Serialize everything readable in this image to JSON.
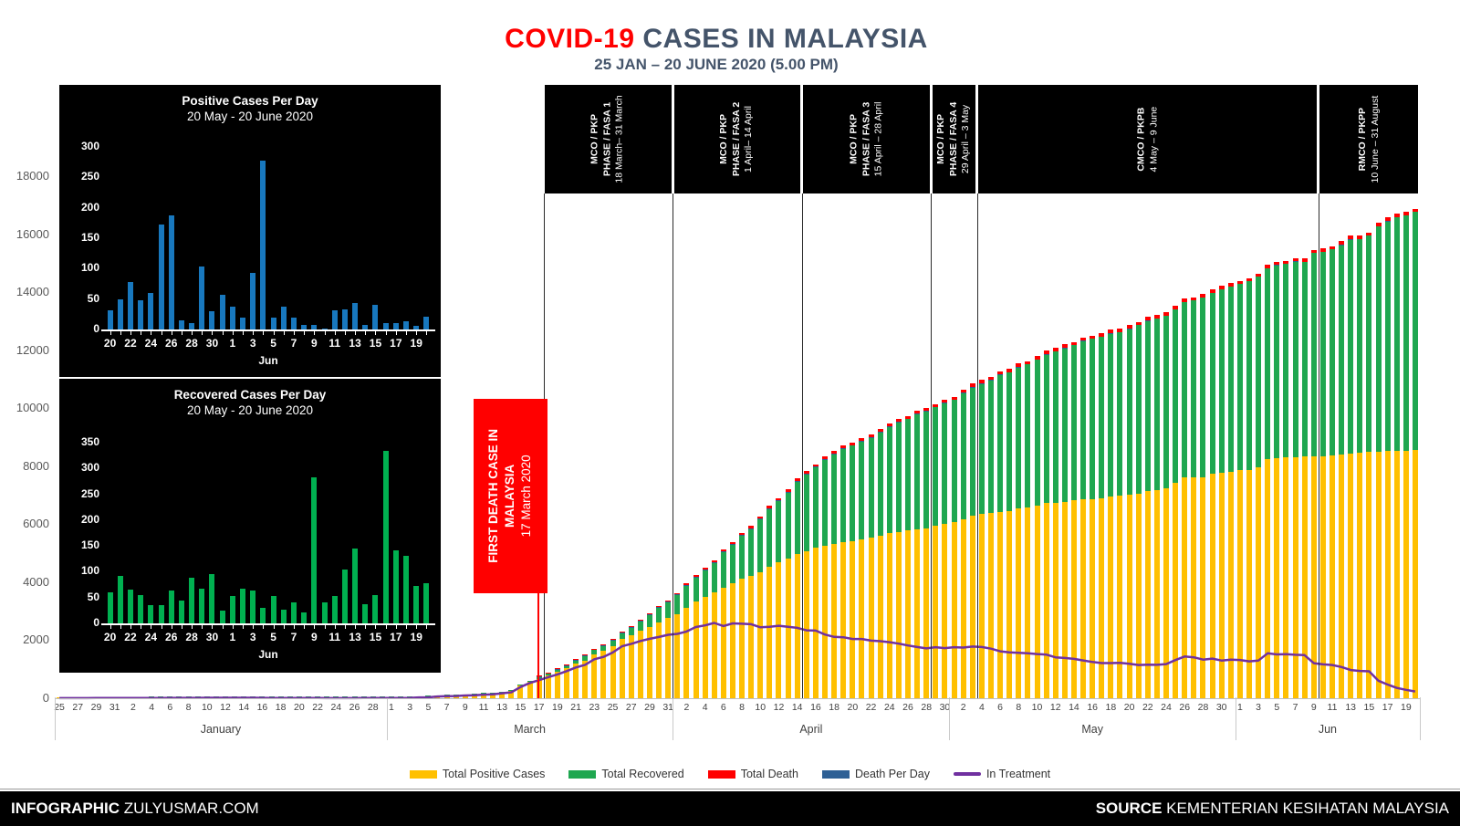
{
  "header": {
    "title_highlight": "COVID-19",
    "title_rest": "CASES IN MALAYSIA",
    "subtitle": "25 JAN – 20 JUNE 2020 (5.00 PM)"
  },
  "annotation_first_death": {
    "line1": "FIRST DEATH CASE IN",
    "line2": "MALAYSIA",
    "date": "17 March 2020"
  },
  "phases": [
    {
      "l1": "MCO / PKP",
      "l2": "PHASE / FASA 1",
      "date": "18 March– 31 March",
      "start_index": 53,
      "end_index": 66
    },
    {
      "l1": "MCO / PKP",
      "l2": "PHASE / FASA 2",
      "date": "1 April– 14 April",
      "start_index": 67,
      "end_index": 80
    },
    {
      "l1": "MCO / PKP",
      "l2": "PHASE / FASA 3",
      "date": "15 April – 28 April",
      "start_index": 81,
      "end_index": 94
    },
    {
      "l1": "MCO / PKP",
      "l2": "PHASE / FASA 4",
      "date": "29 April – 3 May",
      "start_index": 95,
      "end_index": 99
    },
    {
      "l1": "CMCO / PKPB",
      "l2": "",
      "date": "4 May – 9 June",
      "start_index": 100,
      "end_index": 136
    },
    {
      "l1": "RMCO / PKPP",
      "l2": "",
      "date": "10 June – 31 August",
      "start_index": 137,
      "end_index": 147
    }
  ],
  "legend": [
    {
      "label": "Total Positive Cases",
      "color": "#FFC000",
      "shape": "box"
    },
    {
      "label": "Total Recovered",
      "color": "#1FA750",
      "shape": "box"
    },
    {
      "label": "Total Death",
      "color": "#FF0000",
      "shape": "box"
    },
    {
      "label": "Death Per Day",
      "color": "#2E6095",
      "shape": "box"
    },
    {
      "label": "In Treatment",
      "color": "#7030A0",
      "shape": "line"
    }
  ],
  "footer": {
    "left_bold": "INFOGRAPHIC",
    "left_text": "ZULYUSMAR.COM",
    "right_bold": "SOURCE",
    "right_text": "KEMENTERIAN KESIHATAN MALAYSIA"
  },
  "colors": {
    "title_dark": "#44546A",
    "bar_yellow": "#FFC000",
    "bar_green": "#1FA750",
    "bar_red": "#FF0000",
    "bar_blue": "#2E6095",
    "line_purple": "#7030A0",
    "inset_bar_blue": "#1878BE",
    "inset_bar_green": "#00B050"
  },
  "chart_data": [
    {
      "type": "bar",
      "stacked": true,
      "title": "COVID-19 CASES IN MALAYSIA",
      "subtitle": "25 JAN – 20 JUNE 2020 (5.00 PM)",
      "ylim": [
        0,
        18000
      ],
      "yticks": [
        0,
        2000,
        4000,
        6000,
        8000,
        10000,
        12000,
        14000,
        16000,
        18000
      ],
      "x_tick_interval": 2,
      "x_days": [
        25,
        26,
        27,
        28,
        29,
        30,
        31,
        1,
        2,
        3,
        4,
        5,
        6,
        7,
        8,
        9,
        10,
        11,
        12,
        13,
        14,
        15,
        16,
        17,
        18,
        19,
        20,
        21,
        22,
        23,
        24,
        25,
        26,
        27,
        28,
        29,
        1,
        2,
        3,
        4,
        5,
        6,
        7,
        8,
        9,
        10,
        11,
        12,
        13,
        14,
        15,
        16,
        17,
        18,
        19,
        20,
        21,
        22,
        23,
        24,
        25,
        26,
        27,
        28,
        29,
        30,
        31,
        1,
        2,
        3,
        4,
        5,
        6,
        7,
        8,
        9,
        10,
        11,
        12,
        13,
        14,
        15,
        16,
        17,
        18,
        19,
        20,
        21,
        22,
        23,
        24,
        25,
        26,
        27,
        28,
        29,
        30,
        1,
        2,
        3,
        4,
        5,
        6,
        7,
        8,
        9,
        10,
        11,
        12,
        13,
        14,
        15,
        16,
        17,
        18,
        19,
        20,
        21,
        22,
        23,
        24,
        25,
        26,
        27,
        28,
        29,
        30,
        31,
        1,
        2,
        3,
        4,
        5,
        6,
        7,
        8,
        9,
        10,
        11,
        12,
        13,
        14,
        15,
        16,
        17,
        18,
        19,
        20
      ],
      "month_groups": [
        {
          "label": "January",
          "start_index": 0,
          "end_index": 35
        },
        {
          "label": "March",
          "start_index": 36,
          "end_index": 66
        },
        {
          "label": "April",
          "start_index": 67,
          "end_index": 96
        },
        {
          "label": "May",
          "start_index": 97,
          "end_index": 127
        },
        {
          "label": "Jun",
          "start_index": 128,
          "end_index": 147
        }
      ],
      "series": [
        {
          "name": "Total Positive Cases",
          "color": "#FFC000",
          "values": [
            3,
            4,
            4,
            4,
            7,
            8,
            8,
            8,
            8,
            8,
            10,
            12,
            14,
            15,
            16,
            17,
            18,
            18,
            18,
            19,
            19,
            22,
            22,
            22,
            22,
            22,
            22,
            22,
            22,
            22,
            22,
            22,
            22,
            23,
            25,
            25,
            29,
            29,
            36,
            50,
            55,
            83,
            93,
            99,
            117,
            129,
            149,
            158,
            197,
            238,
            428,
            566,
            673,
            790,
            900,
            1030,
            1183,
            1306,
            1518,
            1624,
            1796,
            2031,
            2161,
            2320,
            2470,
            2626,
            2766,
            2908,
            3116,
            3333,
            3483,
            3662,
            3793,
            3963,
            4119,
            4228,
            4346,
            4530,
            4683,
            4817,
            4987,
            5072,
            5182,
            5251,
            5305,
            5389,
            5425,
            5482,
            5532,
            5603,
            5691,
            5742,
            5780,
            5820,
            5851,
            5945,
            6002,
            6071,
            6176,
            6298,
            6353,
            6383,
            6428,
            6467,
            6535,
            6589,
            6656,
            6726,
            6742,
            6779,
            6819,
            6855,
            6872,
            6894,
            6941,
            6978,
            7009,
            7059,
            7137,
            7185,
            7245,
            7417,
            7604,
            7619,
            7629,
            7732,
            7762,
            7819,
            7857,
            7877,
            7970,
            8247,
            8266,
            8303,
            8322,
            8329,
            8336,
            8338,
            8369,
            8402,
            8445,
            8453,
            8494,
            8505,
            8515,
            8529,
            8535,
            8556
          ]
        },
        {
          "name": "Total Recovered",
          "color": "#1FA750",
          "values": [
            0,
            0,
            0,
            0,
            0,
            0,
            0,
            0,
            0,
            0,
            1,
            1,
            1,
            1,
            2,
            3,
            3,
            3,
            3,
            3,
            3,
            7,
            9,
            13,
            13,
            15,
            15,
            15,
            17,
            18,
            18,
            18,
            18,
            18,
            18,
            18,
            18,
            22,
            22,
            22,
            22,
            22,
            23,
            24,
            24,
            26,
            26,
            26,
            26,
            35,
            42,
            42,
            49,
            60,
            75,
            87,
            114,
            139,
            159,
            183,
            199,
            215,
            259,
            320,
            388,
            479,
            537,
            645,
            767,
            827,
            915,
            1005,
            1241,
            1321,
            1487,
            1608,
            1830,
            1995,
            2108,
            2276,
            2478,
            2647,
            2766,
            2967,
            3102,
            3197,
            3295,
            3349,
            3452,
            3542,
            3663,
            3762,
            3862,
            3957,
            4032,
            4087,
            4171,
            4210,
            4326,
            4413,
            4484,
            4567,
            4702,
            4776,
            4864,
            4929,
            5025,
            5113,
            5223,
            5281,
            5351,
            5439,
            5512,
            5571,
            5615,
            5646,
            5706,
            5798,
            5863,
            5918,
            5953,
            5988,
            6051,
            6095,
            6184,
            6251,
            6347,
            6372,
            6425,
            6492,
            6555,
            6585,
            6638,
            6665,
            6706,
            6727,
            7010,
            7051,
            7104,
            7208,
            7353,
            7391,
            7446,
            7780,
            7922,
            8052,
            8124,
            8202
          ]
        },
        {
          "name": "Total Death",
          "color": "#FF0000",
          "values": [
            0,
            0,
            0,
            0,
            0,
            0,
            0,
            0,
            0,
            0,
            0,
            0,
            0,
            0,
            0,
            0,
            0,
            0,
            0,
            0,
            0,
            0,
            0,
            0,
            0,
            0,
            0,
            0,
            0,
            0,
            0,
            0,
            0,
            0,
            0,
            0,
            0,
            0,
            0,
            0,
            0,
            0,
            0,
            0,
            0,
            0,
            0,
            0,
            0,
            0,
            0,
            0,
            2,
            2,
            3,
            8,
            10,
            14,
            14,
            16,
            20,
            24,
            26,
            27,
            34,
            37,
            43,
            45,
            50,
            53,
            57,
            61,
            62,
            63,
            65,
            67,
            70,
            73,
            76,
            77,
            82,
            83,
            84,
            86,
            88,
            89,
            89,
            92,
            93,
            95,
            96,
            98,
            98,
            99,
            100,
            100,
            102,
            102,
            103,
            104,
            105,
            106,
            107,
            107,
            108,
            108,
            108,
            109,
            109,
            111,
            111,
            112,
            112,
            112,
            113,
            113,
            114,
            114,
            115,
            115,
            115,
            115,
            115,
            115,
            115,
            115,
            115,
            115,
            115,
            115,
            115,
            115,
            117,
            117,
            118,
            118,
            118,
            118,
            118,
            119,
            120,
            120,
            120,
            120,
            121,
            121,
            121,
            121
          ]
        },
        {
          "name": "Death Per Day",
          "color": "#2E6095",
          "derived": "daily difference of Total Death"
        },
        {
          "name": "In Treatment",
          "type": "line",
          "color": "#7030A0",
          "derived": "Total Positive Cases - Total Recovered - Total Death"
        }
      ]
    },
    {
      "type": "bar",
      "title": "Positive Cases Per Day",
      "subtitle": "20 May - 20 June 2020",
      "bar_color": "#1878BE",
      "ylim": [
        0,
        300
      ],
      "ytick_step": 50,
      "x_month_label": "Jun",
      "x_days": [
        20,
        21,
        22,
        23,
        24,
        25,
        26,
        27,
        28,
        29,
        30,
        31,
        1,
        2,
        3,
        4,
        5,
        6,
        7,
        8,
        9,
        10,
        11,
        12,
        13,
        14,
        15,
        16,
        17,
        18,
        19,
        20
      ],
      "values": [
        31,
        50,
        78,
        48,
        60,
        172,
        187,
        15,
        10,
        103,
        30,
        57,
        38,
        20,
        93,
        277,
        19,
        37,
        19,
        7,
        7,
        2,
        31,
        33,
        43,
        8,
        41,
        11,
        10,
        14,
        6,
        21
      ]
    },
    {
      "type": "bar",
      "title": "Recovered Cases Per Day",
      "subtitle": "20 May - 20 June 2020",
      "bar_color": "#00B050",
      "ylim": [
        0,
        350
      ],
      "ytick_step": 50,
      "x_month_label": "Jun",
      "x_days": [
        20,
        21,
        22,
        23,
        24,
        25,
        26,
        27,
        28,
        29,
        30,
        31,
        1,
        2,
        3,
        4,
        5,
        6,
        7,
        8,
        9,
        10,
        11,
        12,
        13,
        14,
        15,
        16,
        17,
        18,
        19,
        20
      ],
      "values": [
        60,
        92,
        65,
        55,
        35,
        35,
        63,
        44,
        89,
        67,
        96,
        25,
        53,
        67,
        63,
        30,
        53,
        27,
        41,
        21,
        283,
        41,
        53,
        104,
        145,
        38,
        55,
        334,
        142,
        130,
        72,
        78
      ]
    }
  ]
}
